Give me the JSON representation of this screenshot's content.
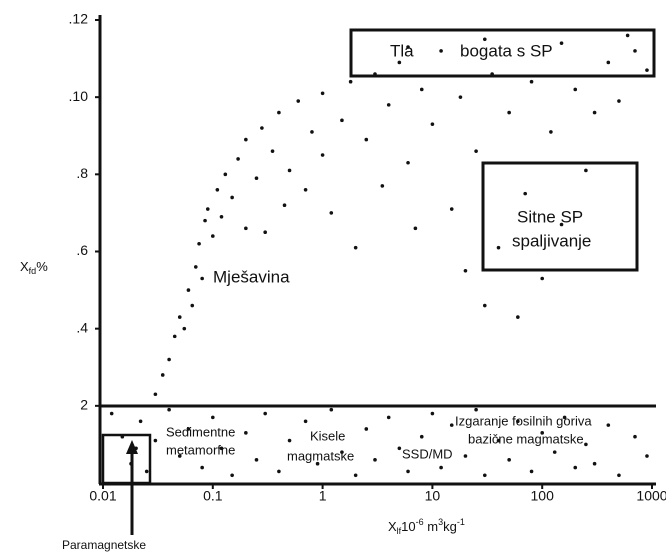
{
  "chart_data": {
    "type": "scatter",
    "ylabel": {
      "main": "X",
      "sub": "fd",
      "suffix": "%"
    },
    "xlabel": {
      "main": "X",
      "sub": "lf",
      "base": "10",
      "exp1": "-6",
      "unit1": " m",
      "exp2": "3",
      "unit2": "kg",
      "exp3": "-1"
    },
    "xlog": true,
    "xlim": [
      0.01,
      1000
    ],
    "xticks": [
      0.01,
      0.1,
      1,
      10,
      100,
      1000
    ],
    "ylim": [
      0,
      12
    ],
    "yticks": [
      {
        "value": 12,
        "label": ".12"
      },
      {
        "value": 10,
        "label": ".10"
      },
      {
        "value": 8,
        "label": ".8"
      },
      {
        "value": 6,
        "label": ".6"
      },
      {
        "value": 4,
        "label": ".4"
      },
      2
    ],
    "color": "#111111",
    "annotations": [
      "Tla",
      "bogata s SP",
      "Sitne SP",
      "spaljivanje",
      "Mješavina",
      "Sedimentne",
      "metamorfne",
      "Kisele",
      "magmatske",
      "SSD/MD",
      "Izgaranje fosilnih goriva",
      "bazične magmatske",
      "Paramagnetske"
    ],
    "x": [
      0.012,
      0.015,
      0.018,
      0.02,
      0.022,
      0.025,
      0.03,
      0.04,
      0.05,
      0.06,
      0.08,
      0.1,
      0.12,
      0.15,
      0.2,
      0.25,
      0.3,
      0.4,
      0.5,
      0.7,
      0.9,
      1.2,
      1.5,
      2,
      2.5,
      3,
      4,
      5,
      6,
      8,
      10,
      12,
      15,
      20,
      25,
      30,
      40,
      50,
      60,
      80,
      100,
      130,
      160,
      200,
      250,
      300,
      400,
      500,
      700,
      900,
      0.03,
      0.035,
      0.04,
      0.045,
      0.05,
      0.055,
      0.06,
      0.065,
      0.07,
      0.075,
      0.08,
      0.085,
      0.09,
      0.1,
      0.11,
      0.12,
      0.13,
      0.15,
      0.17,
      0.2,
      0.2,
      0.25,
      0.28,
      0.3,
      0.35,
      0.4,
      0.45,
      0.5,
      0.6,
      0.7,
      0.8,
      1,
      1,
      1.2,
      1.5,
      1.8,
      2,
      2.5,
      3,
      3.5,
      4,
      5,
      6,
      7,
      8,
      10,
      12,
      15,
      18,
      20,
      25,
      30,
      35,
      40,
      50,
      60,
      70,
      80,
      100,
      120,
      150,
      200,
      250,
      300,
      400,
      500,
      700,
      900,
      6,
      30,
      150,
      600
    ],
    "values": [
      1.8,
      1.2,
      0.5,
      0.9,
      1.6,
      0.3,
      1.1,
      1.9,
      0.7,
      1.4,
      0.4,
      1.7,
      0.9,
      0.2,
      1.3,
      0.6,
      1.8,
      0.3,
      1.1,
      1.6,
      0.5,
      1.9,
      0.8,
      0.2,
      1.4,
      0.6,
      1.7,
      0.9,
      0.3,
      1.2,
      1.8,
      0.4,
      1.5,
      0.7,
      1.9,
      0.2,
      1.1,
      0.6,
      1.6,
      0.3,
      1.3,
      0.8,
      1.7,
      0.4,
      1.0,
      0.5,
      1.5,
      0.2,
      1.2,
      0.7,
      2.3,
      2.8,
      3.2,
      3.8,
      4.3,
      4.0,
      5.0,
      4.6,
      5.6,
      6.2,
      5.3,
      6.8,
      7.1,
      6.4,
      7.6,
      6.9,
      8.0,
      7.4,
      8.4,
      6.6,
      8.9,
      7.9,
      9.2,
      6.5,
      8.6,
      9.6,
      7.2,
      8.1,
      9.9,
      7.6,
      9.1,
      10.1,
      8.5,
      7.0,
      9.4,
      10.4,
      6.1,
      8.9,
      10.6,
      7.7,
      9.8,
      10.9,
      8.3,
      6.6,
      10.2,
      9.3,
      11.2,
      7.1,
      10.0,
      5.5,
      8.6,
      4.6,
      10.6,
      6.1,
      9.6,
      4.3,
      7.5,
      10.4,
      5.3,
      9.1,
      6.7,
      10.2,
      8.1,
      9.6,
      10.9,
      9.9,
      11.2,
      10.7,
      11.3,
      11.5,
      11.4,
      11.6
    ]
  }
}
